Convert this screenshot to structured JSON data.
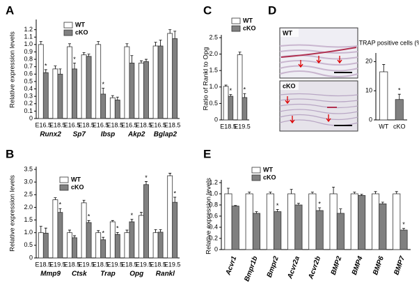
{
  "chart_data": [
    {
      "type": "bar",
      "panel": "A",
      "y_label": "Relative expression levels",
      "groups": [
        "Runx2",
        "Sp7",
        "Ibsp",
        "Akp2",
        "Bglap2"
      ],
      "categories": [
        "E16.5",
        "E18.5",
        "E16.5",
        "E18.5",
        "E16.5",
        "E18.5",
        "E16.5",
        "E18.5",
        "E16.5",
        "E18.5"
      ],
      "series": [
        {
          "name": "WT",
          "color": "#ffffff",
          "values": [
            1.0,
            0.67,
            0.97,
            0.86,
            1.0,
            0.28,
            0.97,
            0.75,
            0.98,
            1.15
          ],
          "errors": [
            0.04,
            0.04,
            0.04,
            0.03,
            0.04,
            0.03,
            0.04,
            0.03,
            0.05,
            0.05
          ],
          "significance": [
            null,
            null,
            null,
            null,
            null,
            null,
            null,
            null,
            null,
            null
          ]
        },
        {
          "name": "cKO",
          "color": "#808080",
          "values": [
            0.62,
            0.6,
            0.67,
            0.84,
            0.33,
            0.25,
            0.75,
            0.77,
            0.98,
            1.08
          ],
          "errors": [
            0.04,
            0.07,
            0.08,
            0.03,
            0.08,
            0.04,
            0.1,
            0.03,
            0.08,
            0.1
          ],
          "significance": [
            "*",
            null,
            "*",
            null,
            "*",
            null,
            null,
            null,
            null,
            null
          ]
        }
      ],
      "ylim": [
        0,
        1.3
      ],
      "yticks": [
        0,
        0.1,
        0.2,
        0.3,
        0.4,
        0.5,
        0.6,
        0.7,
        0.8,
        0.9,
        {
          "value": 1,
          "label": "1.0"
        },
        1.1,
        1.2
      ]
    },
    {
      "type": "bar",
      "panel": "B",
      "y_label": "Relative expression levels",
      "groups": [
        "Mmp9",
        "Ctsk",
        "Trap",
        "Opg",
        "Rankl"
      ],
      "categories": [
        "E18.5",
        "E19.5",
        "E18.5",
        "E19.5",
        "E18.5",
        "E19.5",
        "E18.5",
        "E19.5",
        "E18.5",
        "E19.5"
      ],
      "series": [
        {
          "name": "WT",
          "color": "#ffffff",
          "values": [
            1.0,
            2.3,
            1.0,
            2.18,
            1.0,
            1.43,
            1.0,
            1.68,
            1.0,
            3.25
          ],
          "errors": [
            0.25,
            0.08,
            0.1,
            0.1,
            0.08,
            0.05,
            0.1,
            0.12,
            0.12,
            0.1
          ],
          "significance": [
            null,
            null,
            null,
            null,
            null,
            null,
            null,
            null,
            null,
            null
          ]
        },
        {
          "name": "cKO",
          "color": "#808080",
          "values": [
            0.98,
            1.8,
            0.8,
            1.4,
            0.72,
            0.93,
            1.43,
            2.9,
            1.02,
            2.2
          ],
          "errors": [
            0.2,
            0.15,
            0.08,
            0.08,
            0.1,
            0.08,
            0.1,
            0.12,
            0.1,
            0.2
          ],
          "significance": [
            null,
            "*",
            null,
            "*",
            "*",
            "*",
            "*",
            "*",
            null,
            "*"
          ]
        }
      ],
      "ylim": [
        0,
        3.5
      ],
      "yticks": [
        0,
        0.5,
        {
          "value": 1,
          "label": "1.0"
        },
        1.5,
        {
          "value": 2,
          "label": "2.0"
        },
        2.5,
        {
          "value": 3,
          "label": "3.0"
        },
        3.5
      ]
    },
    {
      "type": "bar",
      "panel": "C",
      "y_label": "Ratio of Rankl to Opg",
      "categories": [
        "E18.5",
        "E19.5"
      ],
      "series": [
        {
          "name": "WT",
          "color": "#ffffff",
          "values": [
            1.02,
            1.98
          ],
          "errors": [
            0.04,
            0.08
          ],
          "significance": [
            null,
            null
          ]
        },
        {
          "name": "cKO",
          "color": "#808080",
          "values": [
            0.72,
            0.68
          ],
          "errors": [
            0.05,
            0.12
          ],
          "significance": [
            "*",
            "*"
          ]
        }
      ],
      "ylim": [
        0,
        2.5
      ],
      "yticks": [
        0,
        0.5,
        {
          "value": 1,
          "label": "1.0"
        },
        1.5,
        {
          "value": 2,
          "label": "2.0"
        },
        2.5
      ]
    },
    {
      "type": "bar",
      "panel": "D",
      "title": "TRAP positive cells (%)",
      "images": [
        "WT",
        "cKO"
      ],
      "categories": [
        "WT",
        "cKO"
      ],
      "series": [
        {
          "name": "TRAP positive cells",
          "colors": [
            "#ffffff",
            "#808080"
          ],
          "values": [
            16.5,
            7
          ],
          "errors": [
            2.5,
            1.8
          ],
          "significance": [
            null,
            "*"
          ]
        }
      ],
      "ylim": [
        0,
        22
      ],
      "yticks": [
        0,
        10,
        20
      ]
    },
    {
      "type": "bar",
      "panel": "E",
      "y_label": "Relative expression levels",
      "categories": [
        "Acvr1",
        "Bmpr1b",
        "Bmpr2",
        "Acvr2a",
        "Acvr2b",
        "BMP2",
        "BMP4",
        "BMP6",
        "BMP7"
      ],
      "series": [
        {
          "name": "WT",
          "color": "#ffffff",
          "values": [
            1.0,
            1.0,
            1.0,
            1.0,
            1.0,
            1.0,
            1.0,
            1.0,
            1.0
          ],
          "errors": [
            0.1,
            0.03,
            0.03,
            0.08,
            0.03,
            0.12,
            0.03,
            0.04,
            0.04
          ],
          "significance": [
            null,
            null,
            null,
            null,
            null,
            null,
            null,
            null,
            null
          ]
        },
        {
          "name": "cKO",
          "color": "#808080",
          "values": [
            0.78,
            0.65,
            0.68,
            0.8,
            0.7,
            0.65,
            0.97,
            0.82,
            0.35
          ],
          "errors": [
            0.01,
            0.03,
            0.04,
            0.03,
            0.05,
            0.08,
            0.02,
            0.03,
            0.03
          ],
          "significance": [
            null,
            null,
            "*",
            null,
            "*",
            null,
            null,
            null,
            "*"
          ]
        }
      ],
      "ylim": [
        0,
        1.2
      ],
      "yticks": [
        0,
        0.2,
        0.4,
        0.6,
        0.8,
        {
          "value": 1,
          "label": "1.0"
        },
        1.2
      ]
    }
  ]
}
